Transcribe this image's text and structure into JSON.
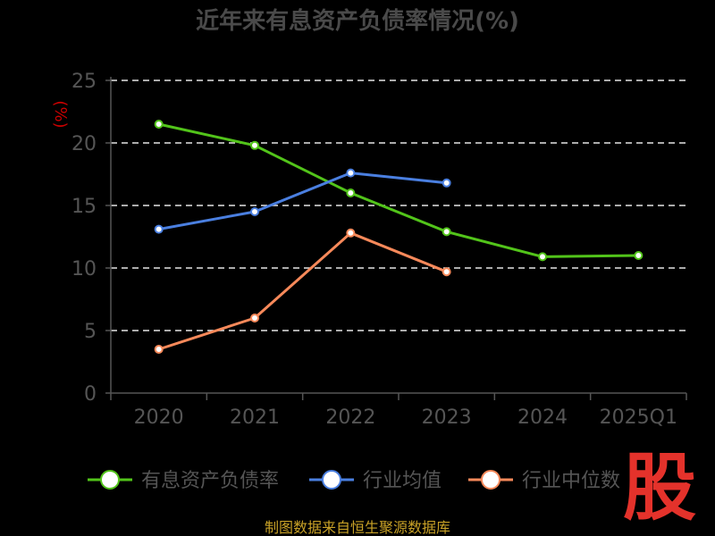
{
  "chart_data": {
    "type": "line",
    "title": "近年来有息资产负债率情况(%)",
    "ylabel": "(%)",
    "categories": [
      "2020",
      "2021",
      "2022",
      "2023",
      "2024",
      "2025Q1"
    ],
    "ylim": [
      0,
      25
    ],
    "yticks": [
      "0",
      "5",
      "10",
      "15",
      "20",
      "25"
    ],
    "grid": true,
    "legend_position": "bottom",
    "series": [
      {
        "name": "有息资产负债率",
        "color": "#52c41a",
        "values": [
          21.5,
          19.8,
          16.0,
          12.9,
          10.9,
          11.0
        ]
      },
      {
        "name": "行业均值",
        "color": "#4a7fe0",
        "values": [
          13.1,
          14.5,
          17.6,
          16.8,
          null,
          null
        ]
      },
      {
        "name": "行业中位数",
        "color": "#f7895a",
        "values": [
          3.5,
          6.0,
          12.8,
          9.7,
          null,
          null
        ]
      }
    ]
  },
  "source": "制图数据来自恒生聚源数据库",
  "badge": "股"
}
